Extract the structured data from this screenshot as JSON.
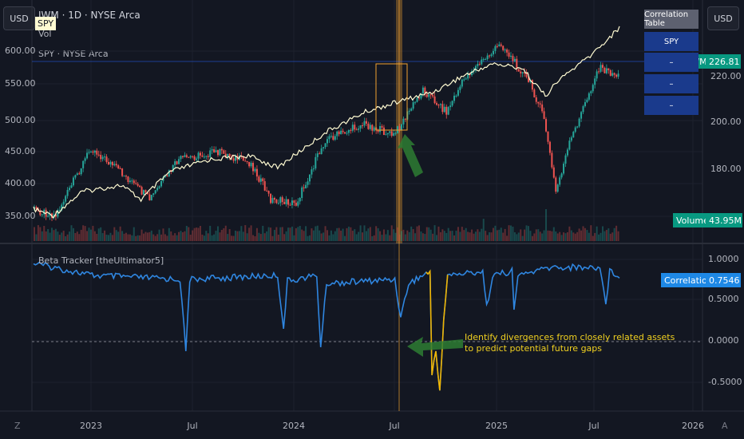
{
  "header": {
    "currency_left": "USD",
    "currency_right": "USD",
    "title": "IWM · 1D · NYSE Arca",
    "vol_label": "Vol",
    "compare_label": "SPY · NYSE Arca",
    "spy_badge": "SPY"
  },
  "price_axis_left": [
    "600.00",
    "550.00",
    "500.00",
    "450.00",
    "400.00",
    "350.00"
  ],
  "price_axis_right": [
    "220.00",
    "200.00",
    "180.00"
  ],
  "correlation_axis": [
    "1.0000",
    "0.5000",
    "0.0000",
    "-0.5000"
  ],
  "time_axis": [
    "2023",
    "Jul",
    "2024",
    "Jul",
    "2025",
    "Jul",
    "2026"
  ],
  "time_axis_left_icon": "Z",
  "time_axis_right_icon": "A",
  "price_tags": {
    "iwm_symbol": "IWM",
    "iwm_value": "226.81",
    "volume_label": "Volume",
    "volume_value": "43.95M",
    "corr_label": "Correlation",
    "corr_value": "0.7546"
  },
  "correlation_table": {
    "header": "Correlation Table",
    "rows": [
      "SPY",
      "–",
      "–",
      "–"
    ]
  },
  "indicator_title": "Beta Tracker [theUltimator5]",
  "annotation": {
    "line1": "Identify divergences from closely related assets",
    "line2": "to predict potential future gaps"
  },
  "colors": {
    "background": "#131722",
    "spy_line": "#fffbd2",
    "correlation_line": "#2f86e0",
    "correlation_low": "#f0b400",
    "up_candle": "#26a69a",
    "down_candle": "#ef5350",
    "arrow": "#2e7d32",
    "highlight_box": "#f0a030",
    "table_blue": "#1a3a8c",
    "iwm_tag": "#089981",
    "corr_tag": "#1e88e5"
  }
}
